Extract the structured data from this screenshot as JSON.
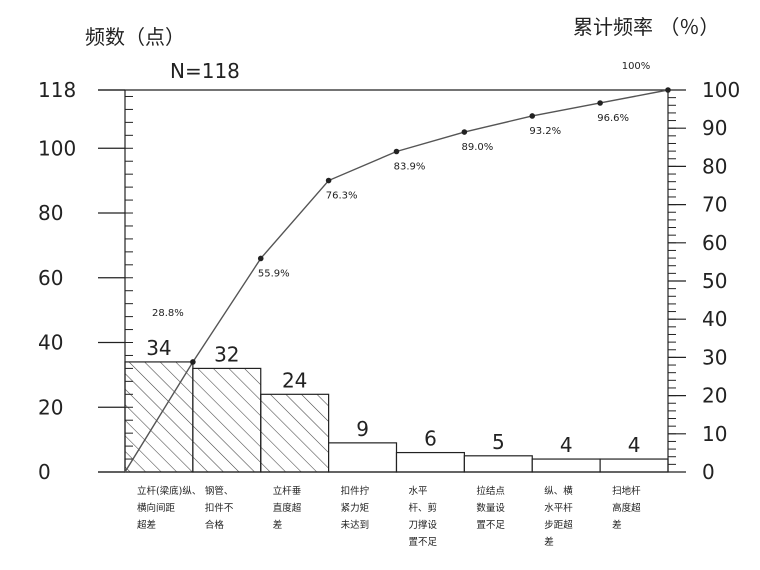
{
  "chart_data": {
    "type": "pareto",
    "left_axis_title": "频数（点）",
    "right_axis_title": "累计频率 （％）",
    "total_label": "N=118",
    "left_ylim": [
      0,
      118
    ],
    "left_ticks": [
      "0",
      "20",
      "40",
      "60",
      "80",
      "100",
      "118"
    ],
    "right_ylim": [
      0,
      100
    ],
    "right_ticks": [
      "0",
      "10",
      "20",
      "30",
      "40",
      "50",
      "60",
      "70",
      "80",
      "90",
      "100"
    ],
    "categories": [
      [
        "立杆(梁底)纵、",
        "横向间距",
        "超差"
      ],
      [
        "钢管、",
        "扣件不",
        "合格"
      ],
      [
        "立杆垂",
        "直度超",
        "差"
      ],
      [
        "扣件拧",
        "紧力矩",
        "未达到"
      ],
      [
        "水平",
        "杆、剪",
        "刀撑设",
        "置不足"
      ],
      [
        "拉结点",
        "数量设",
        "置不足"
      ],
      [
        "纵、横",
        "水平杆",
        "步距超",
        "差"
      ],
      [
        "扫地杆",
        "高度超",
        "差"
      ]
    ],
    "values": [
      34,
      32,
      24,
      9,
      6,
      5,
      4,
      4
    ],
    "value_labels": [
      "34",
      "32",
      "24",
      "9",
      "6",
      "5",
      "4",
      "4"
    ],
    "cumulative_percent": [
      0,
      28.8,
      55.9,
      76.3,
      83.9,
      89.0,
      93.2,
      96.6,
      100
    ],
    "cumulative_labels": [
      "28.8%",
      "55.9%",
      "76.3%",
      "83.9%",
      "89.0%",
      "93.2%",
      "96.6%",
      "100%"
    ],
    "hatched_bars": [
      0,
      1,
      2
    ],
    "colors": {
      "ink": "#222222",
      "hatch": "#444444",
      "bar_fill": "#ffffff"
    }
  }
}
